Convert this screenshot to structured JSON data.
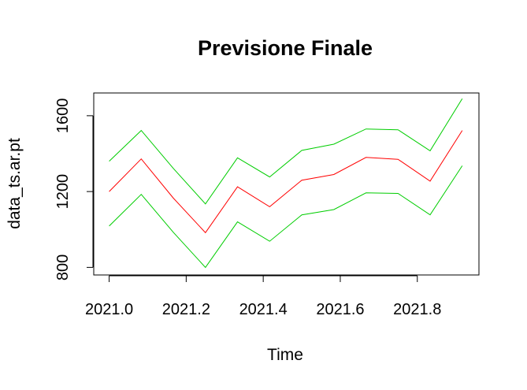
{
  "chart_data": {
    "type": "line",
    "title": "Previsione Finale",
    "xlabel": "Time",
    "ylabel": "data_ts.ar.pt",
    "xlim": [
      2020.96,
      2021.96
    ],
    "ylim": [
      760,
      1720
    ],
    "x_ticks": [
      "2021.0",
      "2021.2",
      "2021.4",
      "2021.6",
      "2021.8"
    ],
    "x_tick_values": [
      2021.0,
      2021.2,
      2021.4,
      2021.6,
      2021.8
    ],
    "y_ticks": [
      "800",
      "1200",
      "1600"
    ],
    "y_tick_values": [
      800,
      1200,
      1600
    ],
    "grid": false,
    "x": [
      2021.0,
      2021.0833,
      2021.1667,
      2021.25,
      2021.3333,
      2021.4167,
      2021.5,
      2021.5833,
      2021.6667,
      2021.75,
      2021.8333,
      2021.9167
    ],
    "series": [
      {
        "color": "#00CD00",
        "values": [
          1360,
          1522,
          1322,
          1135,
          1378,
          1277,
          1417,
          1450,
          1530,
          1526,
          1415,
          1690
        ]
      },
      {
        "color": "#FF0000",
        "values": [
          1200,
          1372,
          1165,
          983,
          1225,
          1120,
          1260,
          1290,
          1380,
          1370,
          1255,
          1522
        ]
      },
      {
        "color": "#00CD00",
        "values": [
          1018,
          1185,
          985,
          800,
          1040,
          938,
          1077,
          1105,
          1193,
          1190,
          1077,
          1336
        ]
      }
    ]
  }
}
